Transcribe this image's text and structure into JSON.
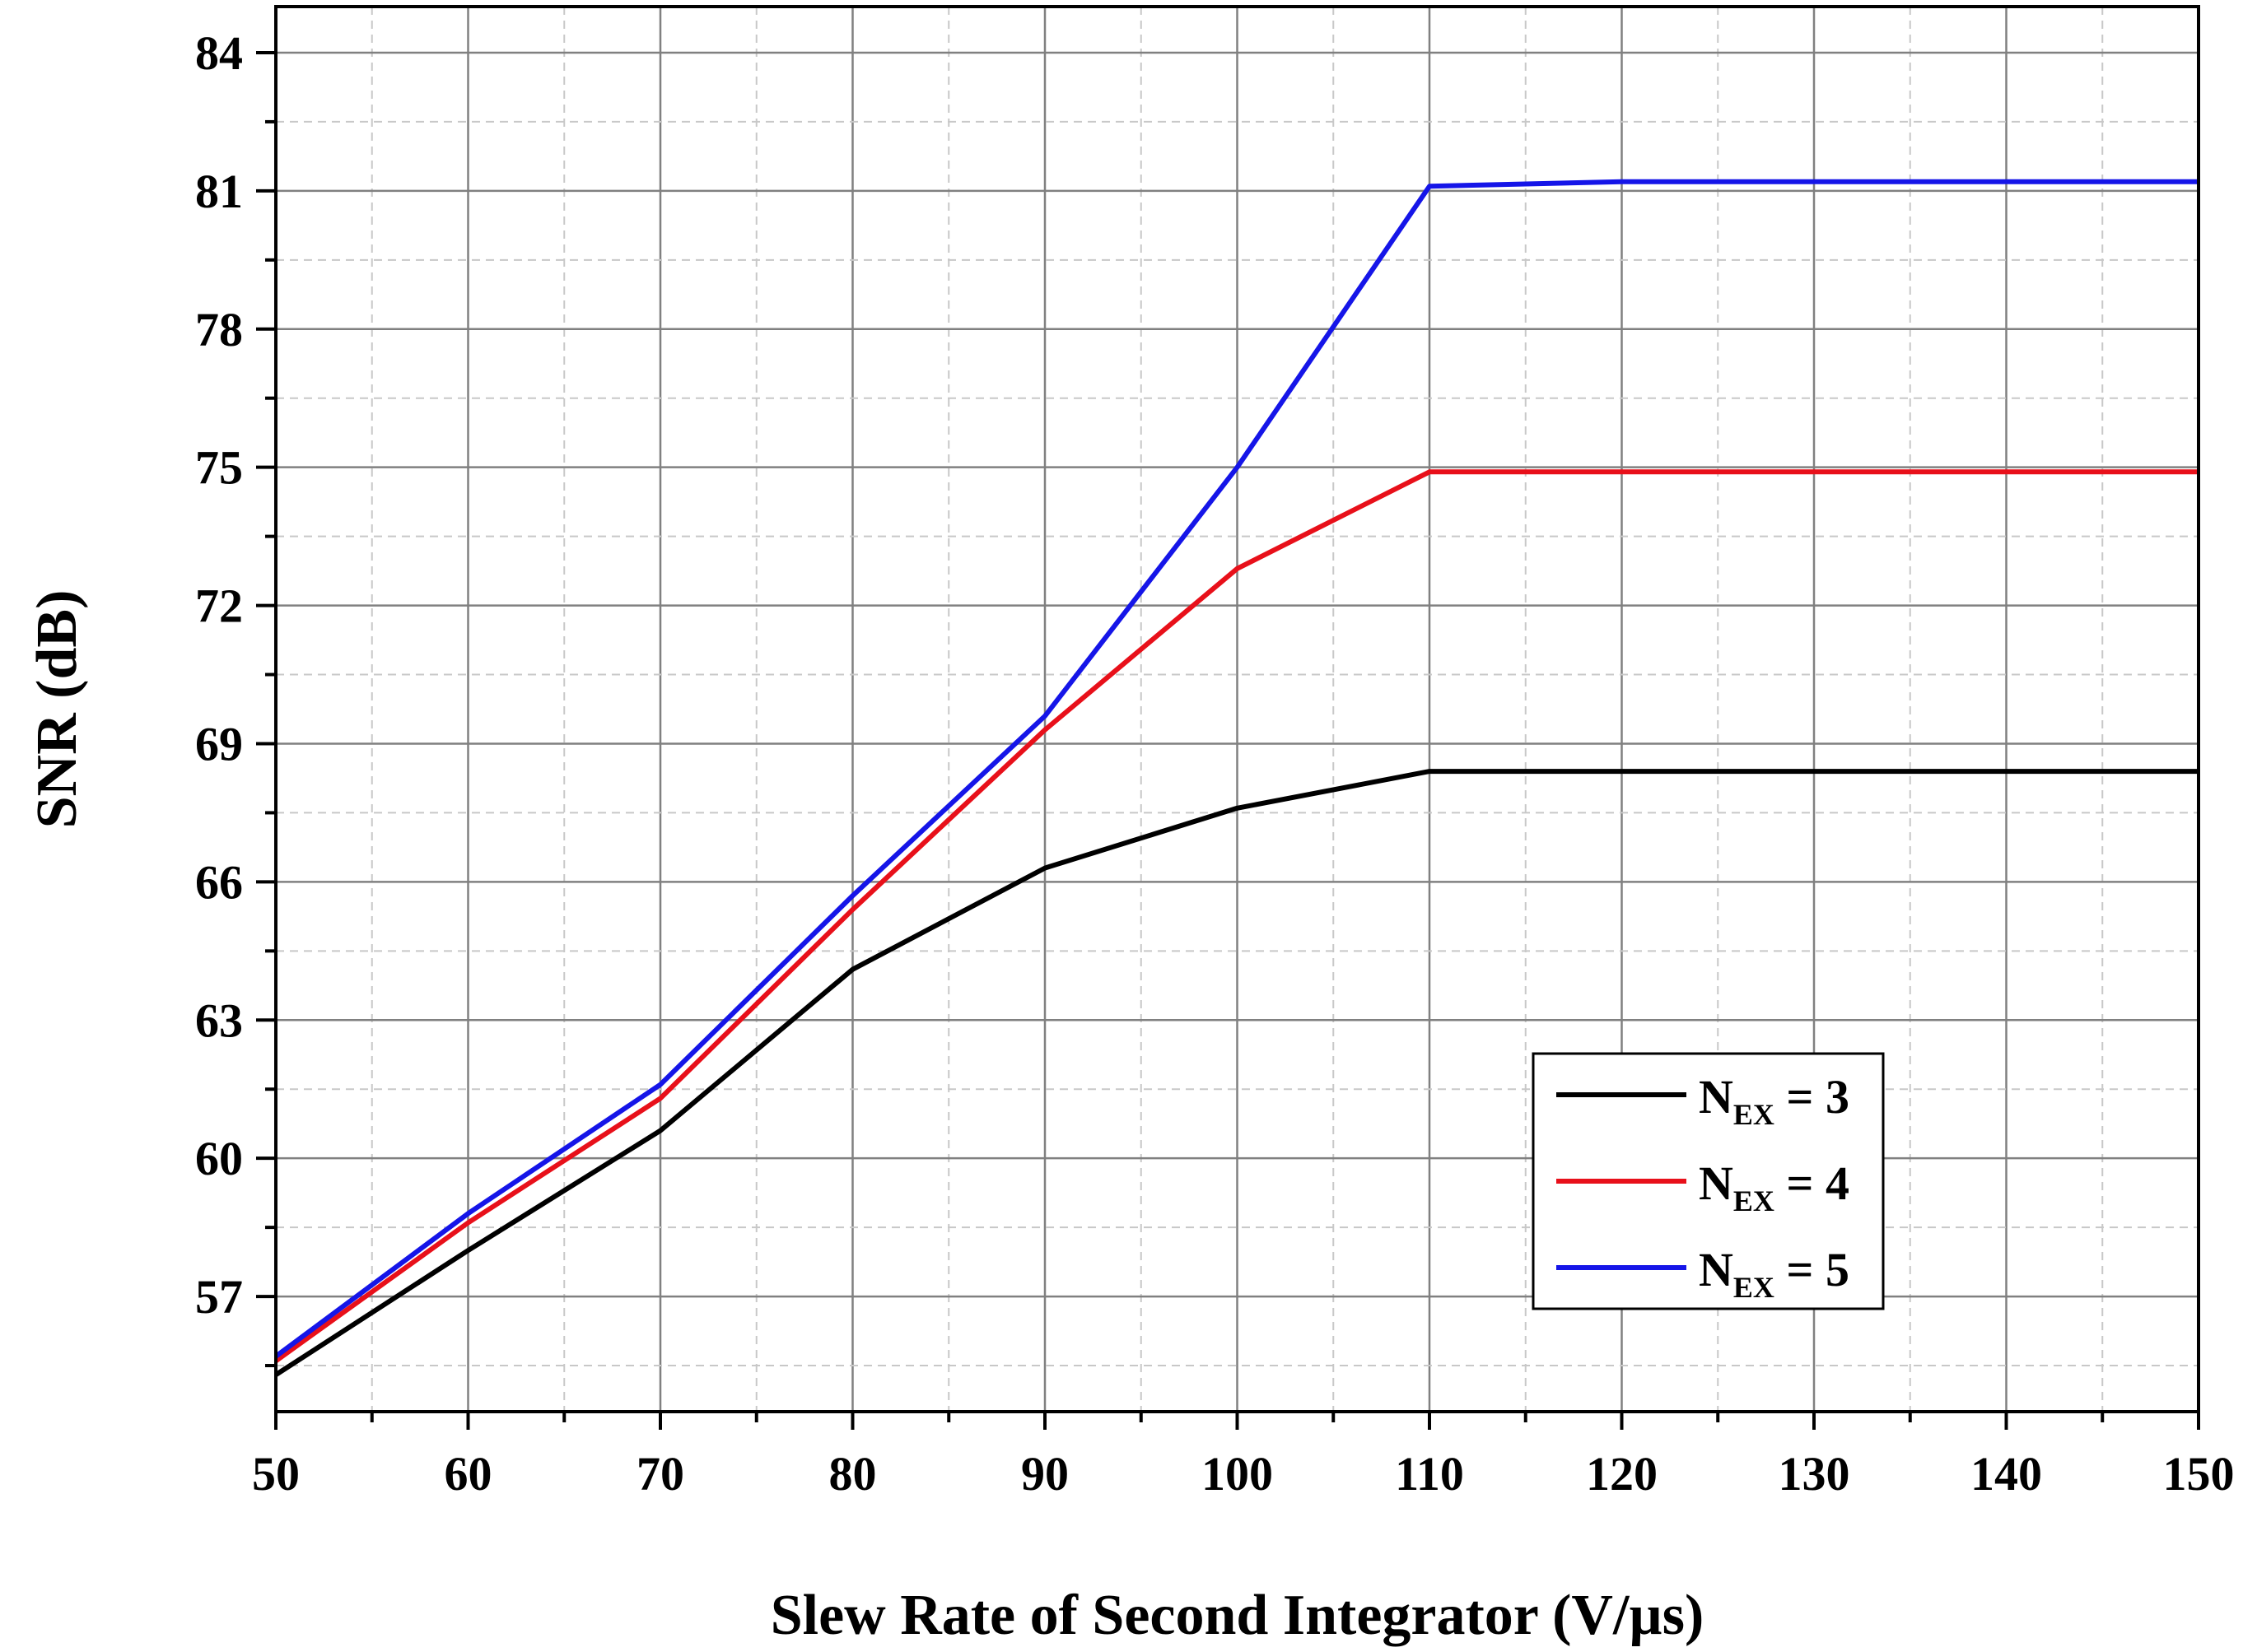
{
  "chart_data": {
    "type": "line",
    "xlabel": "Slew Rate of Second Integrator (V/µs)",
    "ylabel": "SNR (dB)",
    "xlim": [
      50,
      150
    ],
    "ylim": [
      54.5,
      85
    ],
    "x_ticks": [
      "50",
      "60",
      "70",
      "80",
      "90",
      "100",
      "110",
      "120",
      "130",
      "140",
      "150"
    ],
    "y_ticks": [
      "57",
      "60",
      "63",
      "66",
      "69",
      "72",
      "75",
      "78",
      "81",
      "84"
    ],
    "grid": true,
    "legend_position": "bottom-right",
    "x": [
      50,
      60,
      70,
      80,
      90,
      100,
      110,
      120,
      130,
      140,
      150
    ],
    "series": [
      {
        "name_main": "N",
        "name_sub": "EX",
        "name_tail": " = 3",
        "color": "#000000",
        "values": [
          55.3,
          58.0,
          60.6,
          64.1,
          66.3,
          67.6,
          68.4,
          68.4,
          68.4,
          68.4,
          68.4
        ]
      },
      {
        "name_main": "N",
        "name_sub": "EX",
        "name_tail": " = 4",
        "color": "#e8101a",
        "values": [
          55.6,
          58.6,
          61.3,
          65.4,
          69.3,
          72.8,
          74.9,
          74.9,
          74.9,
          74.9,
          74.9
        ]
      },
      {
        "name_main": "N",
        "name_sub": "EX",
        "name_tail": " = 5",
        "color": "#1515e8",
        "values": [
          55.7,
          58.8,
          61.6,
          65.7,
          69.6,
          75.0,
          81.1,
          81.2,
          81.2,
          81.2,
          81.2
        ]
      }
    ]
  }
}
